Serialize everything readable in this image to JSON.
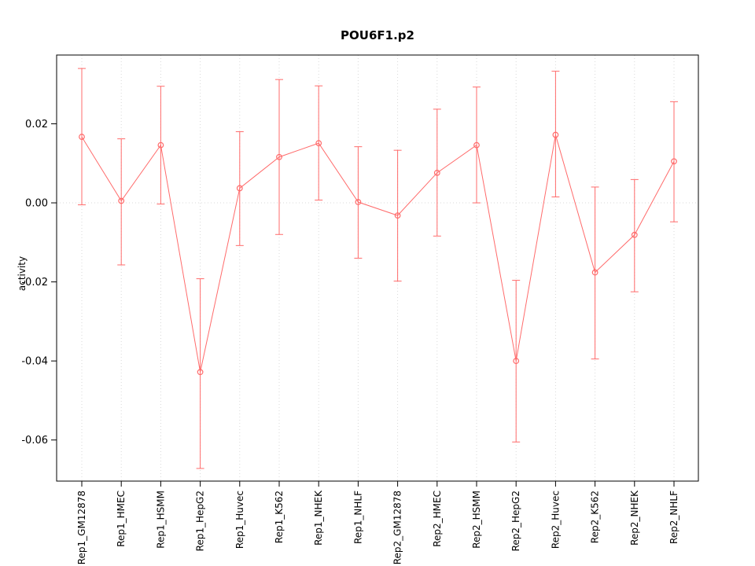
{
  "chart_data": {
    "type": "line",
    "title": "POU6F1.p2",
    "ylabel": "activity",
    "xlabel": "",
    "categories": [
      "Rep1_GM12878",
      "Rep1_HMEC",
      "Rep1_HSMM",
      "Rep1_HepG2",
      "Rep1_Huvec",
      "Rep1_K562",
      "Rep1_NHEK",
      "Rep1_NHLF",
      "Rep2_GM12878",
      "Rep2_HMEC",
      "Rep2_HSMM",
      "Rep2_HepG2",
      "Rep2_Huvec",
      "Rep2_K562",
      "Rep2_NHEK",
      "Rep2_NHLF"
    ],
    "values": [
      0.0167,
      0.0005,
      0.0146,
      -0.0428,
      0.0037,
      0.0116,
      0.0151,
      0.0002,
      -0.0032,
      0.0076,
      0.0146,
      -0.04,
      0.0172,
      -0.0176,
      -0.0081,
      0.0105
    ],
    "error_low": [
      -0.0005,
      -0.0157,
      -0.0003,
      -0.0672,
      -0.0108,
      -0.008,
      0.0007,
      -0.014,
      -0.0198,
      -0.0084,
      0.0,
      -0.0605,
      0.0015,
      -0.0395,
      -0.0225,
      -0.0048
    ],
    "error_high": [
      0.034,
      0.0162,
      0.0295,
      -0.0192,
      0.018,
      0.0312,
      0.0296,
      0.0142,
      0.0133,
      0.0237,
      0.0293,
      -0.0196,
      0.0333,
      0.004,
      0.0059,
      0.0256
    ],
    "ytick_values": [
      0.02,
      0.0,
      -0.02,
      -0.04,
      -0.06
    ],
    "ytick_labels": [
      "0.02",
      "0.00",
      "-0.02",
      "-0.04",
      "-0.06"
    ],
    "ylim": [
      -0.0704,
      0.0374
    ],
    "reference_line_y": 0.0,
    "grid": "dotted vertical per category, dotted horizontal at zero",
    "legend_position": "none",
    "series_color": "#ff6b6b",
    "grid_color": "#d9d9d9",
    "axis_color": "#000000",
    "text_color": "#000000",
    "marker": "open-circle"
  }
}
